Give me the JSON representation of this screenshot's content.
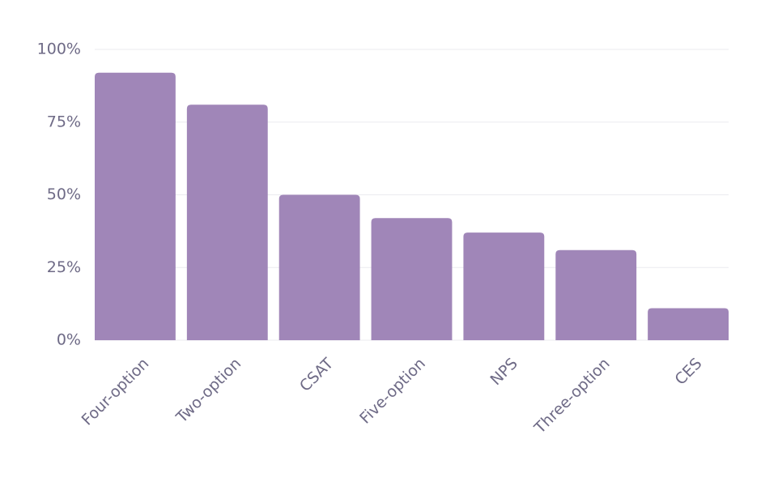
{
  "chart_data": {
    "type": "bar",
    "categories": [
      "Four-option",
      "Two-option",
      "CSAT",
      "Five-option",
      "NPS",
      "Three-option",
      "CES"
    ],
    "values": [
      92,
      81,
      50,
      42,
      37,
      31,
      11
    ],
    "color": "#a086b8",
    "ylim": [
      0,
      100
    ],
    "yticks": [
      {
        "value": 0,
        "label": "0%"
      },
      {
        "value": 25,
        "label": "25%"
      },
      {
        "value": 50,
        "label": "50%"
      },
      {
        "value": 75,
        "label": "75%"
      },
      {
        "value": 100,
        "label": "100%"
      }
    ],
    "grid": true
  }
}
